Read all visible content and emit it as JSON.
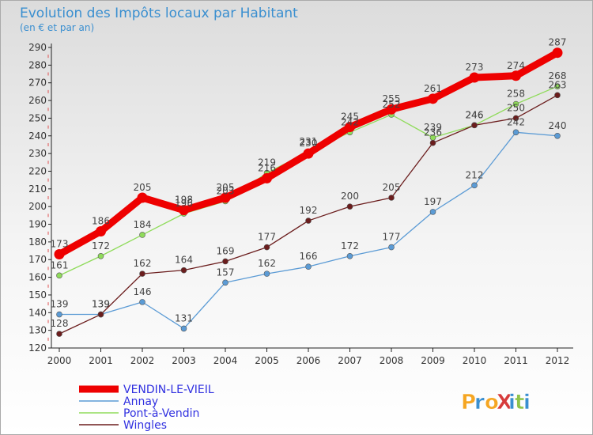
{
  "chart_data": {
    "type": "line",
    "title": "Evolution des Impôts locaux par Habitant",
    "subtitle": "(en € et par an)",
    "xlabel": "",
    "ylabel": "",
    "categories": [
      "2000",
      "2001",
      "2002",
      "2003",
      "2004",
      "2005",
      "2006",
      "2007",
      "2008",
      "2009",
      "2010",
      "2011",
      "2012"
    ],
    "ylim": [
      120,
      290
    ],
    "yticks": [
      120,
      130,
      140,
      150,
      160,
      170,
      180,
      190,
      200,
      210,
      220,
      230,
      240,
      250,
      260,
      270,
      280,
      290
    ],
    "grid": false,
    "legend_position": "bottom-left",
    "series": [
      {
        "name": "VENDIN-LE-VIEIL",
        "color": "#ee0000",
        "values": [
          173,
          186,
          205,
          198,
          205,
          216,
          230,
          245,
          255,
          261,
          273,
          274,
          287
        ]
      },
      {
        "name": "Annay",
        "color": "#5b9bd5",
        "values": [
          139,
          139,
          146,
          131,
          157,
          162,
          166,
          172,
          177,
          197,
          212,
          242,
          240
        ]
      },
      {
        "name": "Pont-à-Vendin",
        "color": "#8fdb5a",
        "values": [
          161,
          172,
          184,
          196,
          203,
          219,
          231,
          242,
          252,
          239,
          246,
          258,
          268
        ]
      },
      {
        "name": "Wingles",
        "color": "#6b1d1d",
        "values": [
          128,
          139,
          162,
          164,
          169,
          177,
          192,
          200,
          205,
          236,
          246,
          250,
          263
        ]
      }
    ]
  },
  "brand": {
    "text": "ProXiti"
  }
}
